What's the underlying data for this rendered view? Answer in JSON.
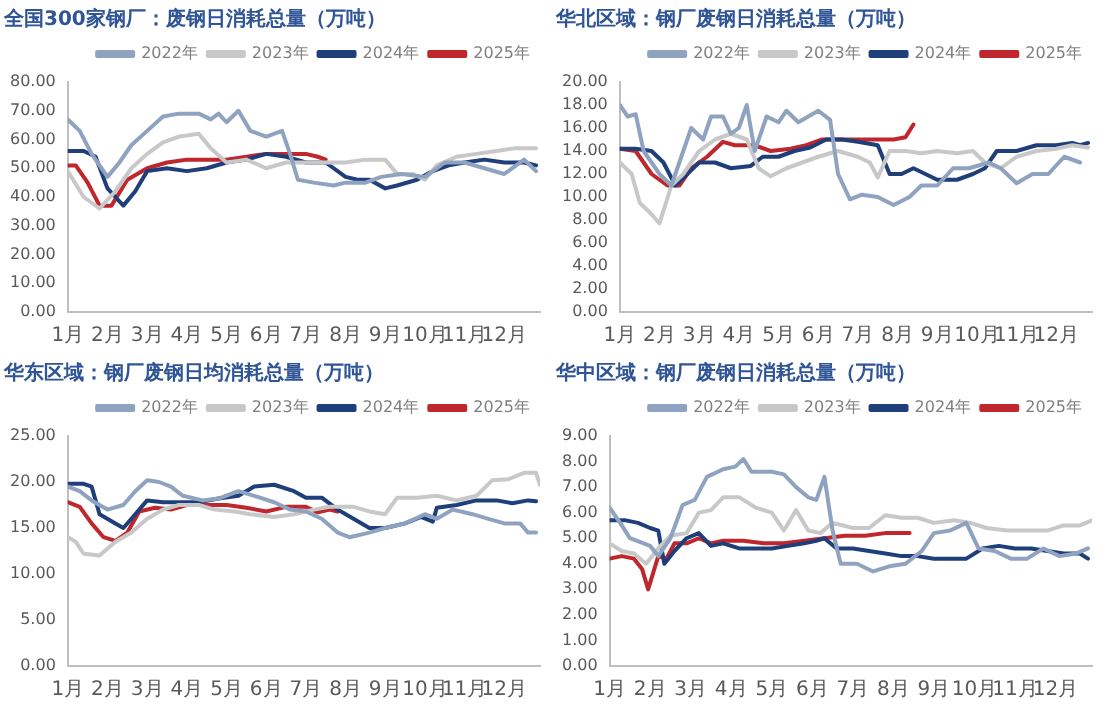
{
  "chart_data": [
    {
      "type": "line",
      "title": "全国300家钢厂：废钢日消耗总量（万吨）",
      "legend": "top",
      "grid": false,
      "marker": "none",
      "line_style": "solid",
      "xlim": [
        1,
        12.9
      ],
      "xticks": [
        {
          "value": 1,
          "label": "1月"
        },
        {
          "value": 2,
          "label": "2月"
        },
        {
          "value": 3,
          "label": "3月"
        },
        {
          "value": 4,
          "label": "4月"
        },
        {
          "value": 5,
          "label": "5月"
        },
        {
          "value": 6,
          "label": "6月"
        },
        {
          "value": 7,
          "label": "7月"
        },
        {
          "value": 8,
          "label": "8月"
        },
        {
          "value": 9,
          "label": "9月"
        },
        {
          "value": 10,
          "label": "10月"
        },
        {
          "value": 11,
          "label": "11月"
        },
        {
          "value": 12,
          "label": "12月"
        }
      ],
      "ylim": [
        0,
        80
      ],
      "yticks": [
        {
          "value": 0,
          "label": "0.00"
        },
        {
          "value": 10,
          "label": "10.00"
        },
        {
          "value": 20,
          "label": "20.00"
        },
        {
          "value": 30,
          "label": "30.00"
        },
        {
          "value": 40,
          "label": "40.00"
        },
        {
          "value": 50,
          "label": "50.00"
        },
        {
          "value": 60,
          "label": "60.00"
        },
        {
          "value": 70,
          "label": "70.00"
        },
        {
          "value": 80,
          "label": "80.00"
        }
      ],
      "series": [
        {
          "name": "2022年",
          "color": "#8fa3c0",
          "x": [
            1,
            1.3,
            1.6,
            2,
            2.3,
            2.6,
            3,
            3.4,
            3.8,
            4.3,
            4.6,
            4.8,
            5,
            5.3,
            5.6,
            6,
            6.4,
            6.6,
            6.8,
            7.2,
            7.7,
            8,
            8.5,
            8.9,
            9.4,
            10,
            10.5,
            11,
            11.5,
            12,
            12.5,
            12.8
          ],
          "values": [
            67,
            63,
            55,
            47,
            52,
            58,
            63,
            68,
            69,
            69,
            67,
            69,
            66,
            70,
            63,
            61,
            63,
            55,
            46,
            45,
            44,
            45,
            45,
            47,
            48,
            47,
            52,
            52,
            50,
            48,
            53,
            49
          ]
        },
        {
          "name": "2023年",
          "color": "#c8c8c8",
          "x": [
            1,
            1.4,
            1.8,
            2.2,
            2.6,
            3,
            3.4,
            3.8,
            4.3,
            4.6,
            5,
            5.5,
            6,
            6.5,
            7,
            7.5,
            8,
            8.5,
            9,
            9.3,
            9.7,
            10,
            10.3,
            10.8,
            11.3,
            11.8,
            12.3,
            12.8
          ],
          "values": [
            49,
            40,
            36,
            42,
            50,
            55,
            59,
            61,
            62,
            57,
            52,
            53,
            50,
            52,
            52,
            52,
            52,
            53,
            53,
            48,
            48,
            46,
            51,
            54,
            55,
            56,
            57,
            57
          ]
        },
        {
          "name": "2024年",
          "color": "#1f3f7a",
          "x": [
            1,
            1.4,
            1.7,
            2,
            2.2,
            2.4,
            2.7,
            3,
            3.5,
            4,
            4.5,
            5,
            5.5,
            6,
            6.5,
            7,
            7.5,
            8,
            8.3,
            8.6,
            9,
            9.3,
            9.8,
            10.2,
            10.6,
            11,
            11.5,
            12,
            12.5,
            12.8
          ],
          "values": [
            56,
            56,
            54,
            43,
            40,
            37,
            42,
            49,
            50,
            49,
            50,
            52,
            53,
            55,
            54,
            52,
            52,
            47,
            46,
            46,
            43,
            44,
            46,
            49,
            51,
            52,
            53,
            52,
            52,
            51
          ]
        },
        {
          "name": "2025年",
          "color": "#c0272d",
          "x": [
            1,
            1.2,
            1.5,
            1.8,
            2.1,
            2.5,
            3,
            3.5,
            4,
            4.5,
            5,
            5.5,
            6,
            6.5,
            7,
            7.3,
            7.5
          ],
          "values": [
            51,
            51,
            45,
            37,
            37,
            46,
            50,
            52,
            53,
            53,
            53,
            54,
            55,
            55,
            55,
            54,
            53
          ]
        }
      ]
    },
    {
      "type": "line",
      "title": "华北区域：钢厂废钢日消耗总量（万吨）",
      "legend": "top",
      "grid": false,
      "marker": "none",
      "line_style": "solid",
      "xlim": [
        1,
        12.9
      ],
      "xticks": [
        {
          "value": 1,
          "label": "1月"
        },
        {
          "value": 2,
          "label": "2月"
        },
        {
          "value": 3,
          "label": "3月"
        },
        {
          "value": 4,
          "label": "4月"
        },
        {
          "value": 5,
          "label": "5月"
        },
        {
          "value": 6,
          "label": "6月"
        },
        {
          "value": 7,
          "label": "7月"
        },
        {
          "value": 8,
          "label": "8月"
        },
        {
          "value": 9,
          "label": "9月"
        },
        {
          "value": 10,
          "label": "10月"
        },
        {
          "value": 11,
          "label": "11月"
        },
        {
          "value": 12,
          "label": "12月"
        }
      ],
      "ylim": [
        0,
        20
      ],
      "yticks": [
        {
          "value": 0,
          "label": "0.00"
        },
        {
          "value": 2,
          "label": "2.00"
        },
        {
          "value": 4,
          "label": "4.00"
        },
        {
          "value": 6,
          "label": "6.00"
        },
        {
          "value": 8,
          "label": "8.00"
        },
        {
          "value": 10,
          "label": "10.00"
        },
        {
          "value": 12,
          "label": "12.00"
        },
        {
          "value": 14,
          "label": "14.00"
        },
        {
          "value": 16,
          "label": "16.00"
        },
        {
          "value": 18,
          "label": "18.00"
        },
        {
          "value": 20,
          "label": "20.00"
        }
      ],
      "series": [
        {
          "name": "2022年",
          "color": "#8fa3c0",
          "x": [
            1,
            1.2,
            1.4,
            1.6,
            2,
            2.3,
            2.6,
            2.8,
            3.1,
            3.3,
            3.6,
            3.8,
            4,
            4.2,
            4.4,
            4.7,
            5,
            5.2,
            5.5,
            6,
            6.3,
            6.5,
            6.8,
            7.1,
            7.5,
            7.9,
            8.3,
            8.6,
            9,
            9.4,
            9.8,
            10.3,
            10.6,
            11,
            11.4,
            11.8,
            12.2,
            12.6
          ],
          "values": [
            18,
            17,
            17.2,
            14,
            12,
            11,
            14,
            16,
            15,
            17,
            17,
            15.5,
            16,
            18,
            14,
            17,
            16.5,
            17.5,
            16.5,
            17.5,
            16.7,
            12,
            9.8,
            10.2,
            10,
            9.3,
            10,
            11,
            11,
            12.5,
            12.5,
            13,
            12.5,
            11.2,
            12,
            12,
            13.5,
            13
          ]
        },
        {
          "name": "2023年",
          "color": "#c8c8c8",
          "x": [
            1,
            1.3,
            1.5,
            1.8,
            2,
            2.3,
            2.6,
            3,
            3.4,
            3.8,
            4.2,
            4.5,
            4.8,
            5.2,
            5.6,
            6,
            6.5,
            7,
            7.3,
            7.5,
            7.8,
            8.2,
            8.6,
            9,
            9.5,
            9.9,
            10.2,
            10.6,
            11,
            11.5,
            12,
            12.4,
            12.8
          ],
          "values": [
            13,
            12,
            9.5,
            8.5,
            7.7,
            11,
            12,
            14,
            15,
            15.5,
            15,
            12.5,
            11.8,
            12.5,
            13,
            13.5,
            14,
            13.5,
            13,
            11.7,
            14,
            14,
            13.8,
            14,
            13.8,
            14,
            13,
            12.5,
            13.5,
            14,
            14.2,
            14.5,
            14.3
          ]
        },
        {
          "name": "2024年",
          "color": "#1f3f7a",
          "x": [
            1,
            1.4,
            1.8,
            2.1,
            2.4,
            2.7,
            3,
            3.4,
            3.8,
            4.3,
            4.6,
            5,
            5.4,
            5.8,
            6.2,
            6.6,
            7,
            7.5,
            7.8,
            8.1,
            8.4,
            8.7,
            9,
            9.5,
            9.9,
            10.2,
            10.5,
            11,
            11.5,
            12,
            12.4,
            12.6,
            12.8
          ],
          "values": [
            14.2,
            14.2,
            14,
            13,
            11,
            12,
            13,
            13,
            12.5,
            12.7,
            13.5,
            13.5,
            14,
            14.3,
            15,
            15,
            14.8,
            14.5,
            12,
            12,
            12.5,
            12,
            11.5,
            11.5,
            12,
            12.5,
            14,
            14,
            14.5,
            14.5,
            14.7,
            14.5,
            14.7
          ]
        },
        {
          "name": "2025年",
          "color": "#c0272d",
          "x": [
            1,
            1.4,
            1.8,
            2.2,
            2.5,
            2.8,
            3.2,
            3.6,
            3.9,
            4.4,
            4.8,
            5.3,
            5.7,
            6.1,
            6.6,
            7,
            7.5,
            7.9,
            8.2,
            8.4
          ],
          "values": [
            14.2,
            14,
            12,
            11,
            11,
            12.5,
            13.5,
            14.8,
            14.5,
            14.5,
            14,
            14.2,
            14.5,
            15,
            15,
            15,
            15,
            15,
            15.2,
            16.3
          ]
        }
      ]
    },
    {
      "type": "line",
      "title": "华东区域：钢厂废钢日均消耗总量（万吨）",
      "legend": "top",
      "grid": false,
      "marker": "none",
      "line_style": "solid",
      "xlim": [
        1,
        12.9
      ],
      "xticks": [
        {
          "value": 1,
          "label": "1月"
        },
        {
          "value": 2,
          "label": "2月"
        },
        {
          "value": 3,
          "label": "3月"
        },
        {
          "value": 4,
          "label": "4月"
        },
        {
          "value": 5,
          "label": "5月"
        },
        {
          "value": 6,
          "label": "6月"
        },
        {
          "value": 7,
          "label": "7月"
        },
        {
          "value": 8,
          "label": "8月"
        },
        {
          "value": 9,
          "label": "9月"
        },
        {
          "value": 10,
          "label": "10月"
        },
        {
          "value": 11,
          "label": "11月"
        },
        {
          "value": 12,
          "label": "12月"
        }
      ],
      "ylim": [
        0,
        25
      ],
      "yticks": [
        {
          "value": 0,
          "label": "0.00"
        },
        {
          "value": 5,
          "label": "5.00"
        },
        {
          "value": 10,
          "label": "10.00"
        },
        {
          "value": 15,
          "label": "15.00"
        },
        {
          "value": 20,
          "label": "20.00"
        },
        {
          "value": 25,
          "label": "25.00"
        }
      ],
      "series": [
        {
          "name": "2022年",
          "color": "#8fa3c0",
          "x": [
            1,
            1.3,
            1.6,
            2,
            2.4,
            2.7,
            3,
            3.3,
            3.6,
            3.9,
            4.4,
            4.8,
            5.3,
            5.7,
            6.2,
            6.6,
            7,
            7.4,
            7.8,
            8.1,
            8.6,
            9,
            9.5,
            10,
            10.3,
            10.7,
            11.2,
            11.6,
            12,
            12.4,
            12.6,
            12.8
          ],
          "values": [
            19.5,
            19,
            18,
            17,
            17.5,
            19,
            20.2,
            20,
            19.5,
            18.5,
            18,
            18.2,
            19,
            18.5,
            17.8,
            17,
            16.8,
            16,
            14.5,
            14,
            14.5,
            15,
            15.5,
            16.5,
            16,
            17,
            16.5,
            16,
            15.5,
            15.5,
            14.5,
            14.5
          ]
        },
        {
          "name": "2023年",
          "color": "#c8c8c8",
          "x": [
            1,
            1.2,
            1.4,
            1.8,
            2.2,
            2.6,
            3,
            3.4,
            3.8,
            4.3,
            4.7,
            5.2,
            5.6,
            6.2,
            6.7,
            7.2,
            7.6,
            8.2,
            8.6,
            9,
            9.3,
            9.8,
            10.3,
            10.8,
            11.3,
            11.7,
            12.1,
            12.5,
            12.8,
            12.9
          ],
          "values": [
            14,
            13.5,
            12.2,
            12,
            13.5,
            14.5,
            16,
            17,
            17.5,
            17.5,
            17,
            16.8,
            16.5,
            16.2,
            16.5,
            17,
            17.3,
            17.3,
            16.8,
            16.5,
            18.3,
            18.3,
            18.5,
            18,
            18.5,
            20.2,
            20.3,
            21,
            21,
            19.7
          ]
        },
        {
          "name": "2024年",
          "color": "#1f3f7a",
          "x": [
            1,
            1.4,
            1.6,
            1.8,
            2.2,
            2.4,
            2.7,
            3,
            3.4,
            3.8,
            4.3,
            4.8,
            5.3,
            5.7,
            6.2,
            6.7,
            7,
            7.4,
            7.8,
            8.2,
            8.6,
            9,
            9.5,
            9.9,
            10.2,
            10.3,
            10.8,
            11.3,
            11.8,
            12.2,
            12.6,
            12.8
          ],
          "values": [
            19.8,
            19.8,
            19.5,
            16.5,
            15.5,
            15,
            16.5,
            18,
            17.8,
            17.8,
            17.8,
            18.2,
            18.5,
            19.5,
            19.7,
            19,
            18.3,
            18.3,
            17,
            16,
            15,
            15,
            15.5,
            16.2,
            15.7,
            17.2,
            17.5,
            18,
            18,
            17.7,
            18,
            17.9
          ]
        },
        {
          "name": "2025年",
          "color": "#c0272d",
          "x": [
            1,
            1.3,
            1.6,
            1.9,
            2.2,
            2.5,
            2.8,
            3.2,
            3.6,
            4,
            4.5,
            5,
            5.5,
            6,
            6.5,
            7,
            7.3,
            7.6,
            7.8
          ],
          "values": [
            17.8,
            17.3,
            15.5,
            14,
            13.6,
            14.5,
            16.8,
            17.2,
            17,
            17.5,
            17.5,
            17.5,
            17.2,
            16.8,
            17.3,
            17.3,
            16.7,
            17,
            16.8
          ]
        }
      ]
    },
    {
      "type": "line",
      "title": "华中区域：钢厂废钢日消耗总量（万吨）",
      "legend": "top",
      "grid": false,
      "marker": "none",
      "line_style": "solid",
      "xlim": [
        1,
        12.9
      ],
      "xticks": [
        {
          "value": 1,
          "label": "1月"
        },
        {
          "value": 2,
          "label": "2月"
        },
        {
          "value": 3,
          "label": "3月"
        },
        {
          "value": 4,
          "label": "4月"
        },
        {
          "value": 5,
          "label": "5月"
        },
        {
          "value": 6,
          "label": "6月"
        },
        {
          "value": 7,
          "label": "7月"
        },
        {
          "value": 8,
          "label": "8月"
        },
        {
          "value": 9,
          "label": "9月"
        },
        {
          "value": 10,
          "label": "10月"
        },
        {
          "value": 11,
          "label": "11月"
        },
        {
          "value": 12,
          "label": "12月"
        }
      ],
      "ylim": [
        0,
        9
      ],
      "yticks": [
        {
          "value": 0,
          "label": "0.00"
        },
        {
          "value": 1,
          "label": "1.00"
        },
        {
          "value": 2,
          "label": "2.00"
        },
        {
          "value": 3,
          "label": "3.00"
        },
        {
          "value": 4,
          "label": "4.00"
        },
        {
          "value": 5,
          "label": "5.00"
        },
        {
          "value": 6,
          "label": "6.00"
        },
        {
          "value": 7,
          "label": "7.00"
        },
        {
          "value": 8,
          "label": "8.00"
        },
        {
          "value": 9,
          "label": "9.00"
        }
      ],
      "series": [
        {
          "name": "2022年",
          "color": "#8fa3c0",
          "x": [
            1,
            1.3,
            1.5,
            2,
            2.2,
            2.5,
            2.8,
            3.1,
            3.4,
            3.8,
            4.1,
            4.3,
            4.5,
            5,
            5.3,
            5.6,
            5.9,
            6.1,
            6.3,
            6.5,
            6.7,
            7.1,
            7.5,
            7.9,
            8.3,
            8.7,
            9,
            9.4,
            9.8,
            10.1,
            10.5,
            10.9,
            11.3,
            11.7,
            12.1,
            12.5,
            12.8
          ],
          "values": [
            6.2,
            5.5,
            5,
            4.7,
            4.3,
            5,
            6.3,
            6.5,
            7.4,
            7.7,
            7.8,
            8.1,
            7.6,
            7.6,
            7.5,
            7,
            6.6,
            6.5,
            7.4,
            5.3,
            4,
            4,
            3.7,
            3.9,
            4,
            4.5,
            5.2,
            5.3,
            5.6,
            4.6,
            4.5,
            4.2,
            4.2,
            4.6,
            4.3,
            4.4,
            4.6
          ]
        },
        {
          "name": "2023年",
          "color": "#c8c8c8",
          "x": [
            1,
            1.3,
            1.6,
            1.9,
            2.2,
            2.5,
            2.9,
            3.2,
            3.5,
            3.8,
            4.2,
            4.6,
            5,
            5.3,
            5.6,
            5.9,
            6.2,
            6.5,
            7,
            7.4,
            7.8,
            8.2,
            8.6,
            9,
            9.5,
            9.9,
            10.3,
            10.8,
            11.3,
            11.8,
            12.2,
            12.6,
            12.9
          ],
          "values": [
            4.8,
            4.5,
            4.4,
            4,
            4.6,
            5.1,
            5.2,
            6,
            6.1,
            6.6,
            6.6,
            6.2,
            6,
            5.3,
            6.1,
            5.3,
            5.2,
            5.6,
            5.4,
            5.4,
            5.9,
            5.8,
            5.8,
            5.6,
            5.7,
            5.6,
            5.4,
            5.3,
            5.3,
            5.3,
            5.5,
            5.5,
            5.7
          ]
        },
        {
          "name": "2024年",
          "color": "#1f3f7a",
          "x": [
            1,
            1.4,
            1.7,
            2,
            2.2,
            2.35,
            2.6,
            2.9,
            3.2,
            3.5,
            3.8,
            4.2,
            4.6,
            5,
            5.4,
            5.8,
            6.1,
            6.3,
            6.6,
            7,
            7.4,
            7.8,
            8.2,
            8.6,
            9,
            9.5,
            9.8,
            10.2,
            10.6,
            11,
            11.4,
            11.8,
            12.2,
            12.6,
            12.8
          ],
          "values": [
            5.7,
            5.7,
            5.6,
            5.4,
            5.3,
            4,
            4.5,
            5,
            5.2,
            4.7,
            4.8,
            4.6,
            4.6,
            4.6,
            4.7,
            4.8,
            4.9,
            5,
            4.6,
            4.6,
            4.5,
            4.4,
            4.3,
            4.3,
            4.2,
            4.2,
            4.2,
            4.6,
            4.7,
            4.6,
            4.6,
            4.5,
            4.4,
            4.4,
            4.2
          ]
        },
        {
          "name": "2025年",
          "color": "#c0272d",
          "x": [
            1,
            1.3,
            1.6,
            1.8,
            1.95,
            2.2,
            2.4,
            2.6,
            2.9,
            3.2,
            3.5,
            3.8,
            4.3,
            4.8,
            5.3,
            5.8,
            6.3,
            6.8,
            7.3,
            7.8,
            8.1,
            8.4
          ],
          "values": [
            4.2,
            4.3,
            4.2,
            3.8,
            3,
            4.3,
            4.2,
            4.8,
            4.8,
            5,
            4.8,
            4.9,
            4.9,
            4.8,
            4.8,
            4.9,
            5,
            5.1,
            5.1,
            5.2,
            5.2,
            5.2
          ]
        }
      ]
    }
  ]
}
